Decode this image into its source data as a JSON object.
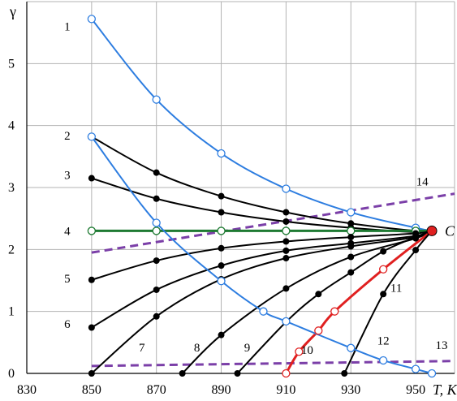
{
  "chart_data": {
    "type": "line",
    "xlabel": "T, K",
    "ylabel": "γ",
    "xlim": [
      830,
      962
    ],
    "ylim": [
      0,
      6
    ],
    "grid": true,
    "x_ticks": [
      830,
      850,
      870,
      890,
      910,
      930,
      950
    ],
    "y_ticks": [
      0,
      1,
      2,
      3,
      4,
      5
    ],
    "critical_point": {
      "label": "C",
      "x": 955,
      "y": 2.3,
      "color": "#e02020"
    },
    "series": [
      {
        "name": "1",
        "color": "#2d7de0",
        "width": 2,
        "marker": "open",
        "points": [
          [
            850,
            5.72
          ],
          [
            870,
            4.42
          ],
          [
            890,
            3.55
          ],
          [
            910,
            2.98
          ],
          [
            930,
            2.6
          ],
          [
            950,
            2.35
          ],
          [
            955,
            2.3
          ]
        ]
      },
      {
        "name": "2",
        "color": "#000000",
        "width": 2,
        "marker": "filled",
        "points": [
          [
            850,
            3.82
          ],
          [
            870,
            3.24
          ],
          [
            890,
            2.86
          ],
          [
            910,
            2.6
          ],
          [
            930,
            2.42
          ],
          [
            950,
            2.3
          ],
          [
            955,
            2.3
          ]
        ]
      },
      {
        "name": "3",
        "color": "#000000",
        "width": 2,
        "marker": "filled",
        "points": [
          [
            850,
            3.15
          ],
          [
            870,
            2.82
          ],
          [
            890,
            2.6
          ],
          [
            910,
            2.45
          ],
          [
            930,
            2.35
          ],
          [
            950,
            2.28
          ],
          [
            955,
            2.3
          ]
        ]
      },
      {
        "name": "4",
        "color": "#1e7a32",
        "width": 3,
        "marker": "open",
        "points": [
          [
            850,
            2.3
          ],
          [
            870,
            2.3
          ],
          [
            890,
            2.3
          ],
          [
            910,
            2.3
          ],
          [
            930,
            2.3
          ],
          [
            950,
            2.3
          ],
          [
            955,
            2.3
          ]
        ]
      },
      {
        "name": "5",
        "color": "#000000",
        "width": 2,
        "marker": "filled",
        "points": [
          [
            850,
            1.51
          ],
          [
            870,
            1.82
          ],
          [
            890,
            2.02
          ],
          [
            910,
            2.13
          ],
          [
            930,
            2.2
          ],
          [
            950,
            2.26
          ],
          [
            955,
            2.3
          ]
        ]
      },
      {
        "name": "6",
        "color": "#000000",
        "width": 2,
        "marker": "filled",
        "points": [
          [
            850,
            0.74
          ],
          [
            870,
            1.35
          ],
          [
            890,
            1.74
          ],
          [
            910,
            1.98
          ],
          [
            930,
            2.1
          ],
          [
            950,
            2.22
          ],
          [
            955,
            2.3
          ]
        ]
      },
      {
        "name": "7",
        "color": "#000000",
        "width": 2,
        "marker": "filled",
        "points": [
          [
            850,
            0
          ],
          [
            870,
            0.92
          ],
          [
            890,
            1.52
          ],
          [
            910,
            1.86
          ],
          [
            930,
            2.05
          ],
          [
            950,
            2.2
          ],
          [
            955,
            2.3
          ]
        ]
      },
      {
        "name": "8",
        "color": "#000000",
        "width": 2,
        "marker": "filled",
        "points": [
          [
            878,
            0
          ],
          [
            890,
            0.62
          ],
          [
            910,
            1.37
          ],
          [
            930,
            1.88
          ],
          [
            950,
            2.18
          ],
          [
            955,
            2.3
          ]
        ]
      },
      {
        "name": "9",
        "color": "#000000",
        "width": 2,
        "marker": "filled",
        "points": [
          [
            895,
            0
          ],
          [
            910,
            0.83
          ],
          [
            920,
            1.28
          ],
          [
            930,
            1.63
          ],
          [
            940,
            1.97
          ],
          [
            950,
            2.2
          ],
          [
            955,
            2.3
          ]
        ]
      },
      {
        "name": "10",
        "color": "#e02020",
        "width": 3,
        "marker": "open",
        "points": [
          [
            910,
            0
          ],
          [
            914,
            0.35
          ],
          [
            920,
            0.69
          ],
          [
            925,
            1.0
          ],
          [
            940,
            1.68
          ],
          [
            955,
            2.3
          ]
        ]
      },
      {
        "name": "11",
        "color": "#000000",
        "width": 2,
        "marker": "filled",
        "points": [
          [
            928,
            0
          ],
          [
            940,
            1.28
          ],
          [
            950,
            1.99
          ],
          [
            955,
            2.3
          ]
        ]
      },
      {
        "name": "12",
        "color": "#2d7de0",
        "width": 2,
        "marker": "open",
        "points": [
          [
            850,
            3.82
          ],
          [
            870,
            2.43
          ],
          [
            890,
            1.49
          ],
          [
            903,
            1.0
          ],
          [
            910,
            0.84
          ],
          [
            930,
            0.41
          ],
          [
            940,
            0.21
          ],
          [
            950,
            0.07
          ],
          [
            955,
            0.0
          ]
        ]
      }
    ],
    "dashed_lines": [
      {
        "name": "13",
        "color": "#7b3fa8",
        "points": [
          [
            850,
            0.12
          ],
          [
            962,
            0.2
          ]
        ]
      },
      {
        "name": "14",
        "color": "#7b3fa8",
        "points": [
          [
            850,
            1.95
          ],
          [
            962,
            2.9
          ]
        ]
      }
    ],
    "curve_labels": [
      {
        "text": "1",
        "x": 842.5,
        "y": 5.6
      },
      {
        "text": "2",
        "x": 842.5,
        "y": 3.84
      },
      {
        "text": "3",
        "x": 842.5,
        "y": 3.2
      },
      {
        "text": "4",
        "x": 842.5,
        "y": 2.3
      },
      {
        "text": "5",
        "x": 842.5,
        "y": 1.53
      },
      {
        "text": "6",
        "x": 842.5,
        "y": 0.8
      },
      {
        "text": "7",
        "x": 865.5,
        "y": 0.42
      },
      {
        "text": "8",
        "x": 882.5,
        "y": 0.42
      },
      {
        "text": "9",
        "x": 898,
        "y": 0.42
      },
      {
        "text": "10",
        "x": 916.5,
        "y": 0.38
      },
      {
        "text": "11",
        "x": 944,
        "y": 1.38
      },
      {
        "text": "12",
        "x": 940,
        "y": 0.53
      },
      {
        "text": "13",
        "x": 958,
        "y": 0.46
      },
      {
        "text": "14",
        "x": 952,
        "y": 3.1
      }
    ]
  }
}
